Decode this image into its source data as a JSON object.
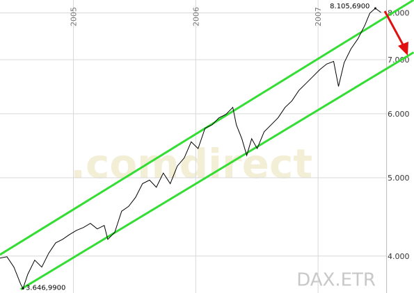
{
  "chart_data": {
    "type": "line",
    "log_scale_y": true,
    "grid": true,
    "xlim": [
      2004.4,
      2007.56
    ],
    "xticks": [
      2005,
      2006,
      2007
    ],
    "ylim": [
      3600,
      8300
    ],
    "yticks": [
      {
        "value": 4000,
        "label": "4.000"
      },
      {
        "value": 5000,
        "label": "5.000"
      },
      {
        "value": 6000,
        "label": "6.000"
      },
      {
        "value": 7000,
        "label": "7.000"
      },
      {
        "value": 8000,
        "label": "8.000"
      }
    ],
    "series": [
      {
        "color": "#000000",
        "x": [
          2004.4,
          2004.457,
          2004.514,
          2004.57,
          2004.588,
          2004.627,
          2004.684,
          2004.741,
          2004.798,
          2004.855,
          2004.911,
          2004.968,
          2005.025,
          2005.082,
          2005.139,
          2005.195,
          2005.252,
          2005.281,
          2005.338,
          2005.394,
          2005.451,
          2005.508,
          2005.565,
          2005.622,
          2005.678,
          2005.735,
          2005.792,
          2005.849,
          2005.906,
          2005.963,
          2006.019,
          2006.076,
          2006.133,
          2006.19,
          2006.247,
          2006.303,
          2006.332,
          2006.377,
          2006.417,
          2006.457,
          2006.502,
          2006.559,
          2006.616,
          2006.673,
          2006.73,
          2006.786,
          2006.843,
          2006.9,
          2006.957,
          2007.014,
          2007.07,
          2007.127,
          2007.167,
          2007.213,
          2007.269,
          2007.326,
          2007.383,
          2007.423,
          2007.468,
          2007.514
        ],
        "values": [
          3976,
          3992,
          3876,
          3689,
          3646.99,
          3797,
          3953,
          3876,
          4032,
          4153,
          4194,
          4253,
          4304,
          4339,
          4391,
          4322,
          4365,
          4194,
          4280,
          4545,
          4608,
          4728,
          4917,
          4967,
          4867,
          5068,
          4917,
          5169,
          5292,
          5539,
          5434,
          5758,
          5815,
          5932,
          5991,
          6111,
          5815,
          5589,
          5329,
          5589,
          5434,
          5701,
          5815,
          5932,
          6111,
          6225,
          6413,
          6541,
          6672,
          6805,
          6914,
          6968,
          6487,
          6941,
          7220,
          7434,
          7728,
          7994,
          8105.69,
          8011
        ]
      }
    ],
    "channels": [
      {
        "color": "#33dd33",
        "x": [
          2004.4,
          2007.781
        ],
        "values": [
          4016,
          8301
        ]
      },
      {
        "color": "#33dd33",
        "x": [
          2004.57,
          2007.781
        ],
        "values": [
          3638,
          7149
        ]
      }
    ],
    "annotations": [
      {
        "label": "8.105,6900",
        "x": 2007.468,
        "value": 8105.69
      },
      {
        "label": "3.646,9900",
        "x": 2004.588,
        "value": 3646.99
      }
    ],
    "watermark": ".comdirect",
    "symbol": "DAX.ETR"
  }
}
